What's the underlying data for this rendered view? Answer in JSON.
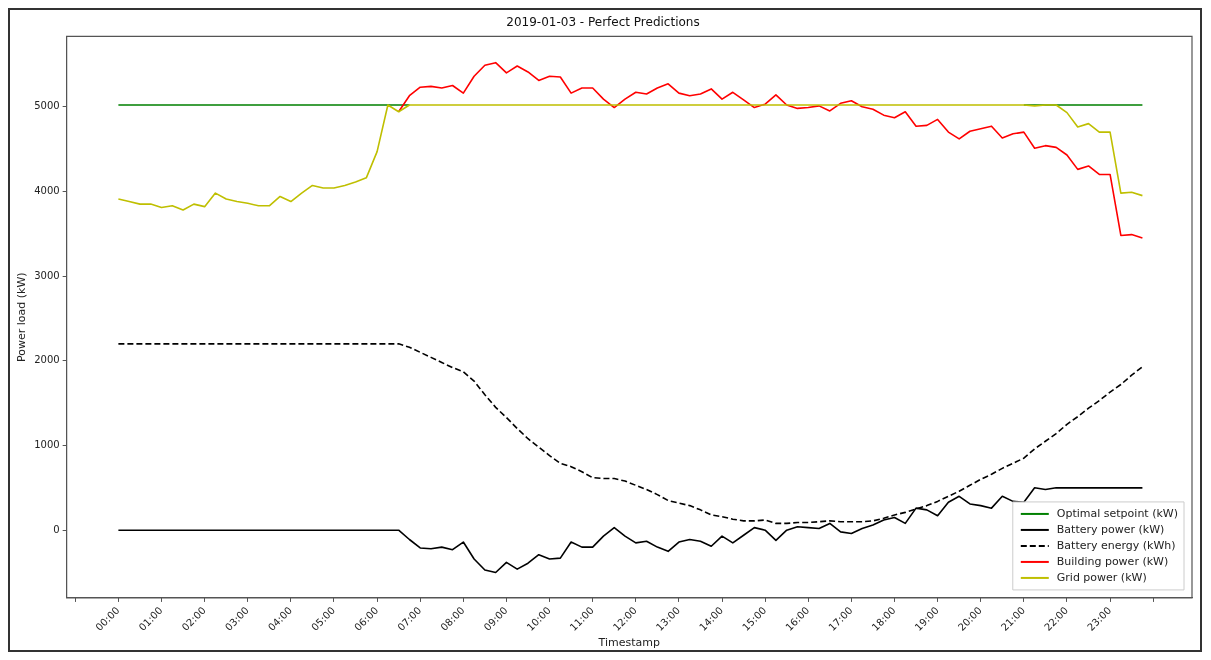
{
  "chart_data": {
    "type": "line",
    "title": "2019-01-03 - Perfect Predictions",
    "xlabel": "Timestamp",
    "ylabel": "Power load (kW)",
    "x": [
      0,
      0.25,
      0.5,
      0.75,
      1,
      1.25,
      1.5,
      1.75,
      2,
      2.25,
      2.5,
      2.75,
      3,
      3.25,
      3.5,
      3.75,
      4,
      4.25,
      4.5,
      4.75,
      5,
      5.25,
      5.5,
      5.75,
      6,
      6.25,
      6.5,
      6.75,
      7,
      7.25,
      7.5,
      7.75,
      8,
      8.25,
      8.5,
      8.75,
      9,
      9.25,
      9.5,
      9.75,
      10,
      10.25,
      10.5,
      10.75,
      11,
      11.25,
      11.5,
      11.75,
      12,
      12.25,
      12.5,
      12.75,
      13,
      13.25,
      13.5,
      13.75,
      14,
      14.25,
      14.5,
      14.75,
      15,
      15.25,
      15.5,
      15.75,
      16,
      16.25,
      16.5,
      16.75,
      17,
      17.25,
      17.5,
      17.75,
      18,
      18.25,
      18.5,
      18.75,
      19,
      19.25,
      19.5,
      19.75,
      20,
      20.25,
      20.5,
      20.75,
      21,
      21.25,
      21.5,
      21.75,
      22,
      22.25,
      22.5,
      22.75,
      23,
      23.25,
      23.5,
      23.75
    ],
    "xlim": [
      -1.2,
      24.9
    ],
    "xticks": [
      {
        "value": -1,
        "label": null
      },
      {
        "value": 0,
        "label": "00:00"
      },
      {
        "value": 1,
        "label": "01:00"
      },
      {
        "value": 2,
        "label": "02:00"
      },
      {
        "value": 3,
        "label": "03:00"
      },
      {
        "value": 4,
        "label": "04:00"
      },
      {
        "value": 5,
        "label": "05:00"
      },
      {
        "value": 6,
        "label": "06:00"
      },
      {
        "value": 7,
        "label": "07:00"
      },
      {
        "value": 8,
        "label": "08:00"
      },
      {
        "value": 9,
        "label": "09:00"
      },
      {
        "value": 10,
        "label": "10:00"
      },
      {
        "value": 11,
        "label": "11:00"
      },
      {
        "value": 12,
        "label": "12:00"
      },
      {
        "value": 13,
        "label": "13:00"
      },
      {
        "value": 14,
        "label": "14:00"
      },
      {
        "value": 15,
        "label": "15:00"
      },
      {
        "value": 16,
        "label": "16:00"
      },
      {
        "value": 17,
        "label": "17:00"
      },
      {
        "value": 18,
        "label": "18:00"
      },
      {
        "value": 19,
        "label": "19:00"
      },
      {
        "value": 20,
        "label": "20:00"
      },
      {
        "value": 21,
        "label": "21:00"
      },
      {
        "value": 22,
        "label": "22:00"
      },
      {
        "value": 23,
        "label": "23:00"
      },
      {
        "value": 24,
        "label": null
      }
    ],
    "ylim": [
      -800,
      5830
    ],
    "yticks": [
      0,
      1000,
      2000,
      3000,
      4000,
      5000
    ],
    "grid": false,
    "legend": "bottom right",
    "marker": "none",
    "series": [
      {
        "name": "Optimal setpoint (kW)",
        "color": "#008000",
        "line_style": "solid",
        "values": [
          5020,
          5020,
          5020,
          5020,
          5020,
          5020,
          5020,
          5020,
          5020,
          5020,
          5020,
          5020,
          5020,
          5020,
          5020,
          5020,
          5020,
          5020,
          5020,
          5020,
          5020,
          5020,
          5020,
          5020,
          5020,
          5020,
          5020,
          5020,
          null,
          null,
          null,
          null,
          null,
          null,
          null,
          null,
          null,
          null,
          null,
          null,
          null,
          null,
          null,
          null,
          null,
          null,
          null,
          null,
          null,
          null,
          null,
          null,
          null,
          null,
          null,
          null,
          null,
          null,
          null,
          null,
          null,
          null,
          null,
          null,
          null,
          null,
          null,
          null,
          null,
          null,
          null,
          null,
          null,
          null,
          null,
          null,
          null,
          null,
          null,
          null,
          null,
          null,
          null,
          null,
          5020,
          5020,
          5020,
          5020,
          5020,
          5020,
          5020,
          5020,
          5020,
          5020,
          5020,
          5020
        ]
      },
      {
        "name": "Battery power (kW)",
        "color": "#000000",
        "line_style": "solid",
        "values": [
          0,
          0,
          0,
          0,
          0,
          0,
          0,
          0,
          0,
          0,
          0,
          0,
          0,
          0,
          0,
          0,
          0,
          0,
          0,
          0,
          0,
          0,
          0,
          0,
          0,
          0,
          0,
          -110,
          -210,
          -220,
          -200,
          -230,
          -140,
          -340,
          -470,
          -500,
          -380,
          -460,
          -390,
          -290,
          -340,
          -330,
          -140,
          -200,
          -200,
          -70,
          30,
          -70,
          -150,
          -130,
          -200,
          -250,
          -140,
          -110,
          -130,
          -190,
          -70,
          -150,
          -60,
          30,
          0,
          -120,
          0,
          40,
          30,
          20,
          80,
          -20,
          -40,
          20,
          60,
          120,
          150,
          80,
          260,
          240,
          170,
          330,
          400,
          310,
          290,
          260,
          400,
          340,
          330,
          500,
          480,
          500,
          500,
          500,
          500,
          500,
          500,
          500,
          500,
          500
        ]
      },
      {
        "name": "Battery energy (kWh)",
        "color": "#000000",
        "line_style": "dashed",
        "values": [
          2200,
          2200,
          2200,
          2200,
          2200,
          2200,
          2200,
          2200,
          2200,
          2200,
          2200,
          2200,
          2200,
          2200,
          2200,
          2200,
          2200,
          2200,
          2200,
          2200,
          2200,
          2200,
          2200,
          2200,
          2200,
          2200,
          2200,
          2160,
          2100,
          2040,
          1980,
          1920,
          1870,
          1760,
          1600,
          1450,
          1330,
          1200,
          1080,
          980,
          880,
          790,
          750,
          690,
          620,
          610,
          610,
          580,
          530,
          480,
          420,
          350,
          320,
          290,
          240,
          180,
          160,
          130,
          110,
          110,
          120,
          80,
          80,
          90,
          90,
          100,
          110,
          100,
          100,
          100,
          110,
          140,
          180,
          210,
          250,
          290,
          340,
          400,
          460,
          530,
          600,
          660,
          730,
          790,
          850,
          960,
          1050,
          1140,
          1250,
          1340,
          1440,
          1530,
          1630,
          1720,
          1830,
          1930
        ]
      },
      {
        "name": "Building power (kW)",
        "color": "#ff0000",
        "line_style": "solid",
        "values": [
          null,
          null,
          null,
          null,
          null,
          null,
          null,
          null,
          null,
          null,
          null,
          null,
          null,
          null,
          null,
          null,
          null,
          null,
          null,
          null,
          null,
          null,
          null,
          null,
          null,
          null,
          4940,
          5130,
          5230,
          5240,
          5220,
          5250,
          5160,
          5360,
          5490,
          5520,
          5400,
          5480,
          5410,
          5310,
          5360,
          5350,
          5160,
          5220,
          5220,
          5090,
          4990,
          5090,
          5170,
          5150,
          5220,
          5270,
          5160,
          5130,
          5150,
          5210,
          5090,
          5170,
          5080,
          4990,
          5030,
          5140,
          5020,
          4980,
          4990,
          5010,
          4950,
          5040,
          5070,
          5000,
          4970,
          4900,
          4870,
          4940,
          4770,
          4780,
          4850,
          4700,
          4620,
          4710,
          4740,
          4770,
          4630,
          4680,
          4700,
          4510,
          4540,
          4520,
          4430,
          4260,
          4300,
          4200,
          4200,
          3480,
          3490,
          3450
        ]
      },
      {
        "name": "Grid power (kW)",
        "color": "#bfbf00",
        "line_style": "solid",
        "values": [
          3910,
          3880,
          3850,
          3850,
          3810,
          3830,
          3780,
          3850,
          3820,
          3980,
          3910,
          3880,
          3860,
          3830,
          3830,
          3940,
          3880,
          3980,
          4070,
          4040,
          4040,
          4070,
          4110,
          4160,
          4470,
          5020,
          4940,
          5020,
          5020,
          5020,
          5020,
          5020,
          5020,
          5020,
          5020,
          5020,
          5020,
          5020,
          5020,
          5020,
          5020,
          5020,
          5020,
          5020,
          5020,
          5020,
          5020,
          5020,
          5020,
          5020,
          5020,
          5020,
          5020,
          5020,
          5020,
          5020,
          5020,
          5020,
          5020,
          5020,
          5020,
          5020,
          5020,
          5020,
          5020,
          5020,
          5020,
          5020,
          5020,
          5020,
          5020,
          5020,
          5020,
          5020,
          5020,
          5020,
          5020,
          5020,
          5020,
          5020,
          5020,
          5020,
          5020,
          5020,
          5020,
          5010,
          5020,
          5020,
          4930,
          4760,
          4800,
          4700,
          4700,
          3980,
          3990,
          3950
        ]
      }
    ]
  }
}
